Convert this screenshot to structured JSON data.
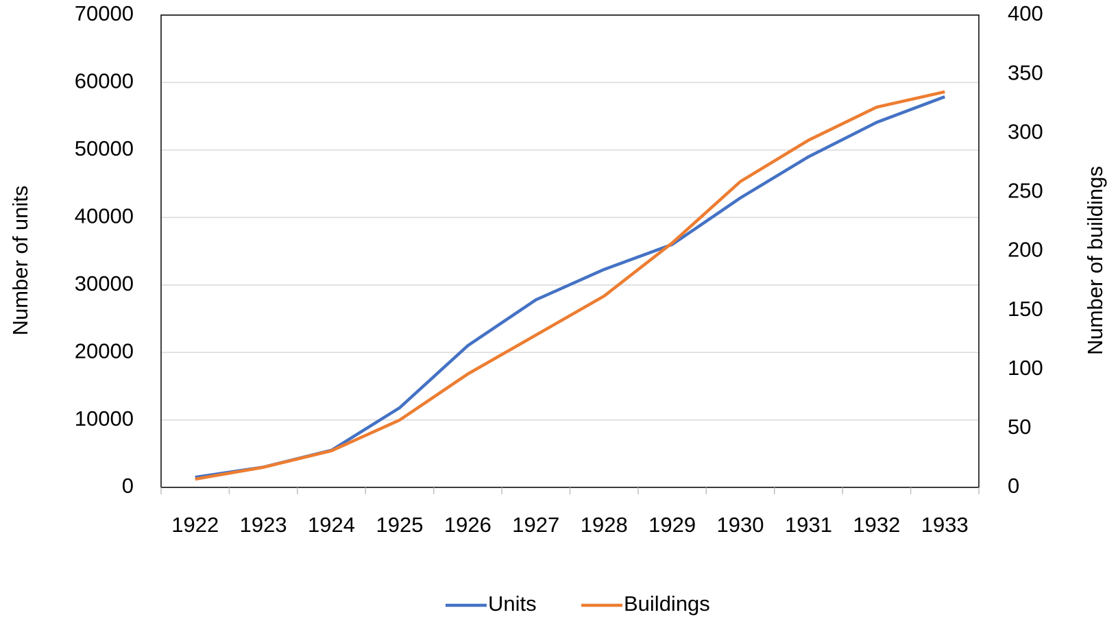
{
  "chart_data": {
    "type": "line",
    "categories": [
      "1922",
      "1923",
      "1924",
      "1925",
      "1926",
      "1927",
      "1928",
      "1929",
      "1930",
      "1931",
      "1932",
      "1933"
    ],
    "series": [
      {
        "name": "Units",
        "color": "#4472c4",
        "values": [
          1500,
          3000,
          5500,
          11800,
          21000,
          27800,
          32300,
          36000,
          42900,
          49000,
          54100,
          57900
        ]
      },
      {
        "name": "Buildings",
        "color": "#ed7d31",
        "axis": "y2",
        "values": [
          7,
          17,
          31,
          57,
          96,
          129,
          162,
          207,
          259,
          294,
          322,
          335
        ]
      }
    ],
    "ylabel": "Number of units",
    "y2label": "Number of buildings",
    "ylim": [
      0,
      70000
    ],
    "yticks": [
      0,
      10000,
      20000,
      30000,
      40000,
      50000,
      60000,
      70000
    ],
    "y2lim": [
      0,
      400
    ],
    "y2ticks": [
      0,
      50,
      100,
      150,
      200,
      250,
      300,
      350,
      400
    ],
    "grid": true,
    "legend": "bottom"
  }
}
